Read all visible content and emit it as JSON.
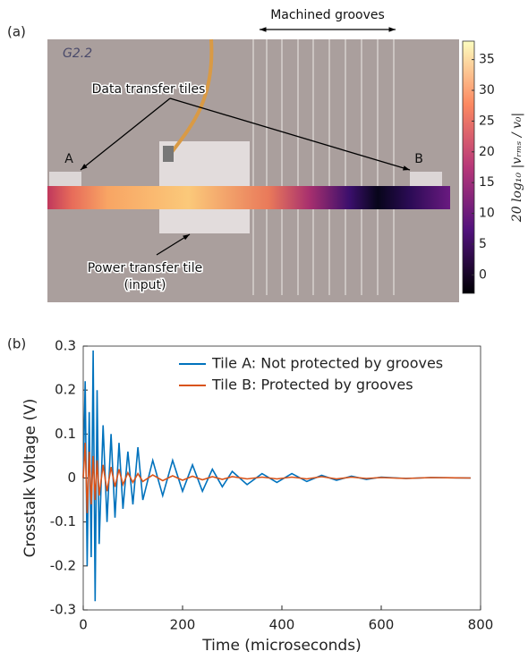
{
  "chart_data": [
    {
      "type": "image",
      "label": "(a)",
      "photo_text": "G2.2",
      "annotations": {
        "grooves": "Machined grooves",
        "data_tiles": "Data transfer tiles",
        "tile_a": "A",
        "tile_b": "B",
        "power_tile": "Power transfer tile",
        "power_tile_note": "(input)"
      },
      "colorbar": {
        "label": "20 log₁₀ |vᵣₘₛ / v₀|",
        "lim": [
          -3,
          38
        ],
        "ticks": [
          0,
          5,
          10,
          15,
          20,
          25,
          30,
          35
        ]
      }
    },
    {
      "type": "line",
      "label": "(b)",
      "xlabel": "Time (microseconds)",
      "ylabel": "Crosstalk Voltage (V)",
      "x": [
        0,
        4,
        8,
        12,
        16,
        20,
        24,
        28,
        32,
        40,
        48,
        56,
        64,
        72,
        80,
        90,
        100,
        110,
        120,
        140,
        160,
        180,
        200,
        220,
        240,
        260,
        280,
        300,
        330,
        360,
        390,
        420,
        450,
        480,
        510,
        540,
        570,
        600,
        650,
        700,
        780
      ],
      "series": [
        {
          "name": "Tile A: Not protected by grooves",
          "color": "#0072bd",
          "values": [
            0,
            0.22,
            -0.2,
            0.15,
            -0.18,
            0.29,
            -0.28,
            0.2,
            -0.15,
            0.12,
            -0.1,
            0.1,
            -0.09,
            0.08,
            -0.07,
            0.06,
            -0.06,
            0.07,
            -0.05,
            0.04,
            -0.04,
            0.04,
            -0.03,
            0.03,
            -0.03,
            0.02,
            -0.02,
            0.015,
            -0.015,
            0.01,
            -0.01,
            0.01,
            -0.008,
            0.006,
            -0.005,
            0.004,
            -0.003,
            0.002,
            -0.001,
            0.001,
            0
          ]
        },
        {
          "name": "Tile B: Protected by grooves",
          "color": "#d95319",
          "values": [
            0,
            0.08,
            -0.08,
            0.06,
            -0.06,
            0.05,
            -0.05,
            0.04,
            -0.04,
            0.03,
            -0.03,
            0.025,
            -0.02,
            0.02,
            -0.015,
            0.012,
            -0.01,
            0.01,
            -0.008,
            0.007,
            -0.006,
            0.005,
            -0.005,
            0.004,
            -0.004,
            0.003,
            -0.003,
            0.003,
            -0.002,
            0.002,
            -0.002,
            0.002,
            -0.002,
            0.003,
            -0.002,
            0.002,
            -0.001,
            0.001,
            -0.001,
            0.001,
            0
          ]
        }
      ],
      "xlim": [
        0,
        800
      ],
      "xticks": [
        0,
        200,
        400,
        600,
        800
      ],
      "ylim": [
        -0.3,
        0.3
      ],
      "yticks": [
        -0.3,
        -0.2,
        -0.1,
        0,
        0.1,
        0.2,
        0.3
      ],
      "legend": "upper right"
    }
  ]
}
